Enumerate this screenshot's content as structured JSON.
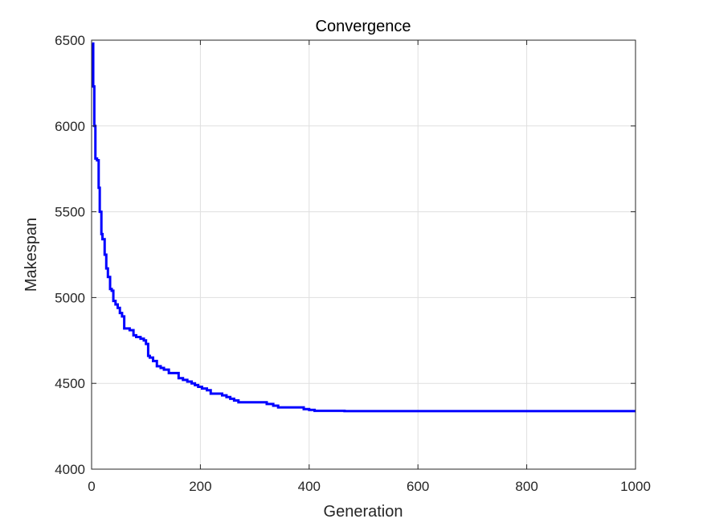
{
  "chart_data": {
    "type": "line",
    "title": "Convergence",
    "xlabel": "Generation",
    "ylabel": "Makespan",
    "xlim": [
      0,
      1000
    ],
    "ylim": [
      4000,
      6500
    ],
    "xticks": [
      0,
      200,
      400,
      600,
      800,
      1000
    ],
    "yticks": [
      4000,
      4500,
      5000,
      5500,
      6000,
      6500
    ],
    "x_tick_labels": [
      "0",
      "200",
      "400",
      "600",
      "800",
      "1000"
    ],
    "y_tick_labels": [
      "4000",
      "4500",
      "5000",
      "5500",
      "6000",
      "6500"
    ],
    "grid": true,
    "series": [
      {
        "color": "#0000ff",
        "step": true,
        "x": [
          1,
          3,
          5,
          7,
          10,
          13,
          15,
          18,
          20,
          24,
          27,
          30,
          34,
          37,
          40,
          44,
          48,
          52,
          56,
          60,
          62,
          70,
          77,
          82,
          90,
          96,
          100,
          104,
          107,
          113,
          120,
          127,
          133,
          142,
          148,
          160,
          168,
          176,
          184,
          190,
          196,
          203,
          212,
          219,
          230,
          240,
          248,
          255,
          262,
          270,
          300,
          322,
          334,
          343,
          350,
          360,
          390,
          400,
          410,
          450,
          465,
          500,
          700,
          1000
        ],
        "values": [
          6480,
          6230,
          6000,
          5810,
          5800,
          5640,
          5500,
          5370,
          5340,
          5250,
          5170,
          5120,
          5050,
          5040,
          4980,
          4960,
          4940,
          4910,
          4890,
          4820,
          4820,
          4810,
          4780,
          4770,
          4760,
          4750,
          4730,
          4660,
          4650,
          4630,
          4600,
          4590,
          4580,
          4560,
          4560,
          4530,
          4520,
          4510,
          4500,
          4490,
          4480,
          4470,
          4460,
          4440,
          4440,
          4430,
          4420,
          4410,
          4400,
          4390,
          4390,
          4380,
          4370,
          4360,
          4360,
          4360,
          4350,
          4345,
          4340,
          4340,
          4338,
          4338,
          4338,
          4338
        ]
      }
    ]
  }
}
